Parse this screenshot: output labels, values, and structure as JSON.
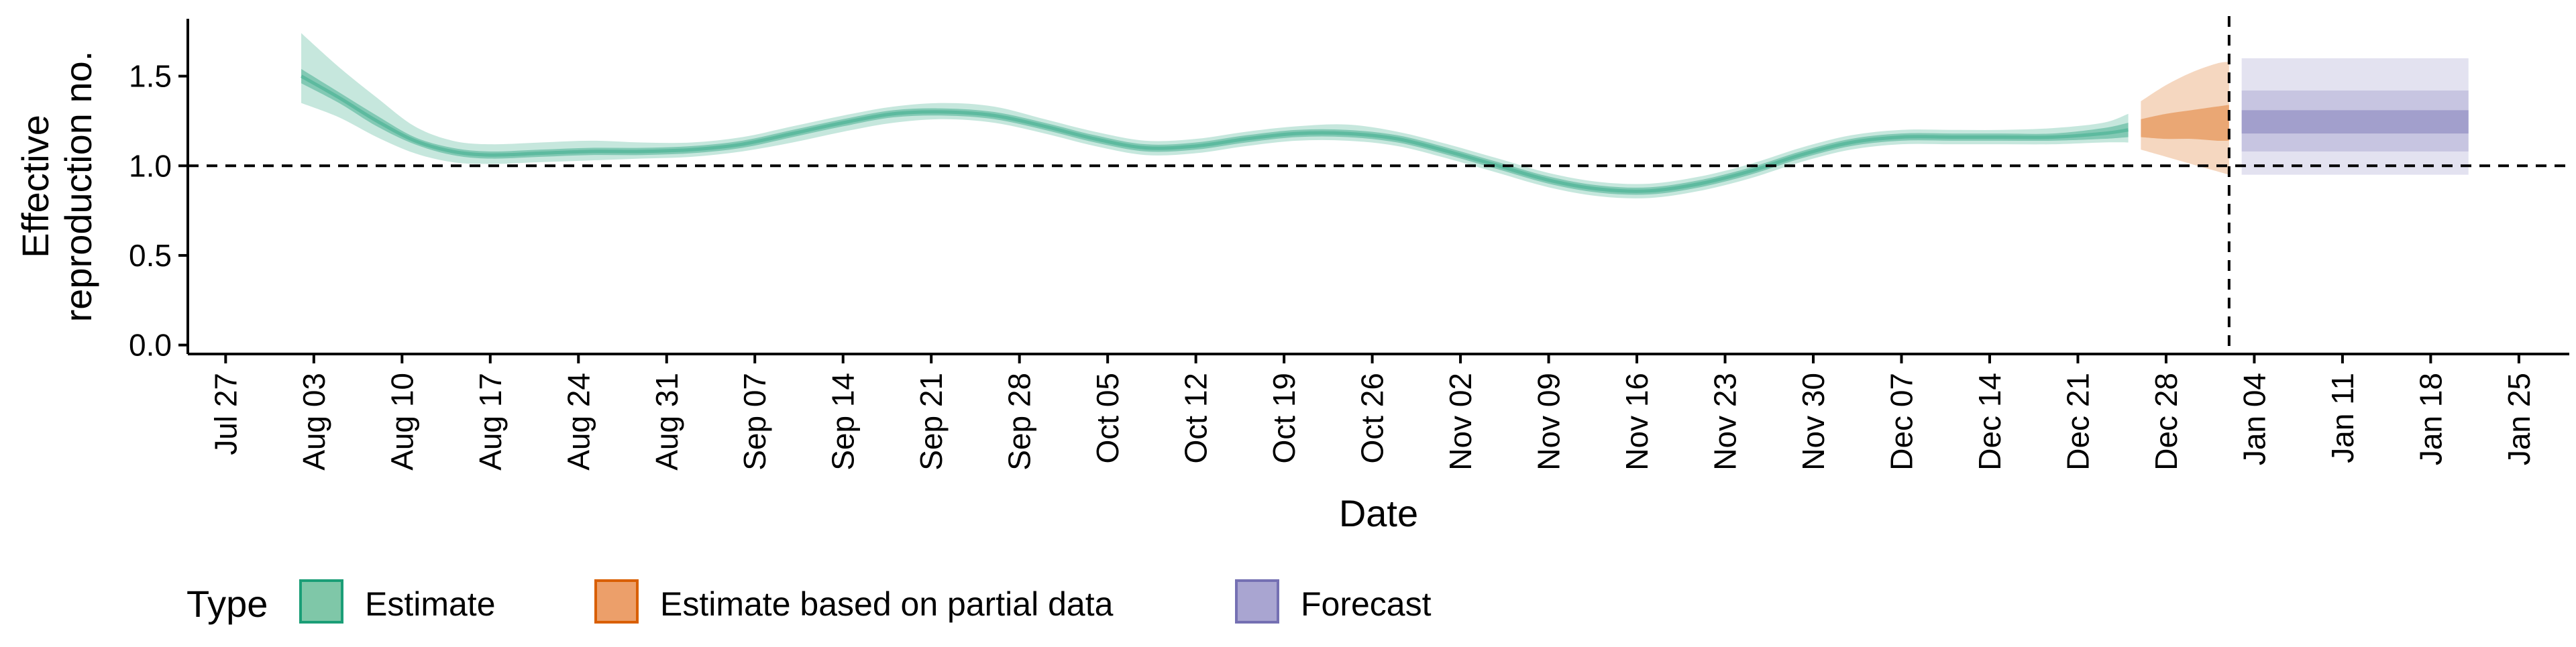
{
  "chart_data": {
    "type": "line",
    "xlabel": "Date",
    "ylabel_lines": [
      "Effective",
      "reproduction no."
    ],
    "ylim": [
      -0.05,
      1.82
    ],
    "y_ticks": [
      {
        "value": 0.0,
        "label": "0.0"
      },
      {
        "value": 0.5,
        "label": "0.5"
      },
      {
        "value": 1.0,
        "label": "1.0"
      },
      {
        "value": 1.5,
        "label": "1.5"
      }
    ],
    "x_ticks": [
      {
        "date": "2020-07-27",
        "label": "Jul 27"
      },
      {
        "date": "2020-08-03",
        "label": "Aug 03"
      },
      {
        "date": "2020-08-10",
        "label": "Aug 10"
      },
      {
        "date": "2020-08-17",
        "label": "Aug 17"
      },
      {
        "date": "2020-08-24",
        "label": "Aug 24"
      },
      {
        "date": "2020-08-31",
        "label": "Aug 31"
      },
      {
        "date": "2020-09-07",
        "label": "Sep 07"
      },
      {
        "date": "2020-09-14",
        "label": "Sep 14"
      },
      {
        "date": "2020-09-21",
        "label": "Sep 21"
      },
      {
        "date": "2020-09-28",
        "label": "Sep 28"
      },
      {
        "date": "2020-10-05",
        "label": "Oct 05"
      },
      {
        "date": "2020-10-12",
        "label": "Oct 12"
      },
      {
        "date": "2020-10-19",
        "label": "Oct 19"
      },
      {
        "date": "2020-10-26",
        "label": "Oct 26"
      },
      {
        "date": "2020-11-02",
        "label": "Nov 02"
      },
      {
        "date": "2020-11-09",
        "label": "Nov 09"
      },
      {
        "date": "2020-11-16",
        "label": "Nov 16"
      },
      {
        "date": "2020-11-23",
        "label": "Nov 23"
      },
      {
        "date": "2020-11-30",
        "label": "Nov 30"
      },
      {
        "date": "2020-12-07",
        "label": "Dec 07"
      },
      {
        "date": "2020-12-14",
        "label": "Dec 14"
      },
      {
        "date": "2020-12-21",
        "label": "Dec 21"
      },
      {
        "date": "2020-12-28",
        "label": "Dec 28"
      },
      {
        "date": "2021-01-04",
        "label": "Jan 04"
      },
      {
        "date": "2021-01-11",
        "label": "Jan 11"
      },
      {
        "date": "2021-01-18",
        "label": "Jan 18"
      },
      {
        "date": "2021-01-25",
        "label": "Jan 25"
      }
    ],
    "xlim": [
      "2020-07-24",
      "2021-01-29"
    ],
    "reference_lines": {
      "horizontal_y": 1.0,
      "vertical_date": "2021-01-02"
    },
    "legend": {
      "title": "Type",
      "position": "bottom-left",
      "entries": [
        {
          "label": "Estimate",
          "fill": "#7fc7a8",
          "border": "#1b9e77"
        },
        {
          "label": "Estimate based on partial data",
          "fill": "#ec9f6a",
          "border": "#d95f02"
        },
        {
          "label": "Forecast",
          "fill": "#a9a5d1",
          "border": "#7570b3"
        }
      ]
    },
    "colors": {
      "estimate": "#1b9e77",
      "partial": "#d95f02",
      "forecast": "#7570b3"
    },
    "series": [
      {
        "type": "Estimate",
        "dates": [
          "2020-08-02",
          "2020-08-05",
          "2020-08-08",
          "2020-08-11",
          "2020-08-14",
          "2020-08-17",
          "2020-08-21",
          "2020-08-25",
          "2020-08-29",
          "2020-09-02",
          "2020-09-06",
          "2020-09-10",
          "2020-09-14",
          "2020-09-18",
          "2020-09-22",
          "2020-09-26",
          "2020-09-30",
          "2020-10-04",
          "2020-10-08",
          "2020-10-12",
          "2020-10-16",
          "2020-10-20",
          "2020-10-24",
          "2020-10-28",
          "2020-11-01",
          "2020-11-05",
          "2020-11-09",
          "2020-11-13",
          "2020-11-17",
          "2020-11-21",
          "2020-11-25",
          "2020-11-29",
          "2020-12-03",
          "2020-12-07",
          "2020-12-11",
          "2020-12-15",
          "2020-12-19",
          "2020-12-23",
          "2020-12-25"
        ],
        "median": [
          1.5,
          1.38,
          1.25,
          1.14,
          1.08,
          1.06,
          1.07,
          1.08,
          1.08,
          1.09,
          1.12,
          1.18,
          1.24,
          1.29,
          1.3,
          1.28,
          1.22,
          1.15,
          1.1,
          1.11,
          1.15,
          1.18,
          1.18,
          1.15,
          1.08,
          1.0,
          0.92,
          0.87,
          0.86,
          0.9,
          0.97,
          1.06,
          1.13,
          1.16,
          1.16,
          1.16,
          1.16,
          1.18,
          1.2
        ],
        "lower_50": [
          1.46,
          1.35,
          1.22,
          1.12,
          1.06,
          1.04,
          1.05,
          1.06,
          1.06,
          1.07,
          1.1,
          1.16,
          1.22,
          1.27,
          1.28,
          1.26,
          1.2,
          1.13,
          1.08,
          1.09,
          1.13,
          1.16,
          1.16,
          1.13,
          1.06,
          0.98,
          0.9,
          0.85,
          0.84,
          0.88,
          0.95,
          1.04,
          1.11,
          1.14,
          1.14,
          1.14,
          1.14,
          1.15,
          1.16
        ],
        "upper_50": [
          1.54,
          1.41,
          1.28,
          1.16,
          1.1,
          1.08,
          1.09,
          1.1,
          1.1,
          1.11,
          1.14,
          1.2,
          1.26,
          1.31,
          1.32,
          1.3,
          1.24,
          1.17,
          1.12,
          1.13,
          1.17,
          1.2,
          1.2,
          1.17,
          1.1,
          1.02,
          0.94,
          0.89,
          0.88,
          0.92,
          0.99,
          1.08,
          1.15,
          1.18,
          1.18,
          1.18,
          1.18,
          1.21,
          1.24
        ],
        "lower_90": [
          1.35,
          1.27,
          1.16,
          1.07,
          1.02,
          1.01,
          1.02,
          1.03,
          1.04,
          1.05,
          1.08,
          1.13,
          1.19,
          1.24,
          1.26,
          1.24,
          1.18,
          1.11,
          1.06,
          1.07,
          1.11,
          1.14,
          1.14,
          1.11,
          1.04,
          0.96,
          0.88,
          0.83,
          0.82,
          0.86,
          0.93,
          1.02,
          1.09,
          1.12,
          1.12,
          1.12,
          1.12,
          1.13,
          1.13
        ],
        "upper_90": [
          1.74,
          1.55,
          1.38,
          1.22,
          1.14,
          1.12,
          1.13,
          1.14,
          1.13,
          1.13,
          1.16,
          1.22,
          1.28,
          1.33,
          1.35,
          1.33,
          1.26,
          1.19,
          1.14,
          1.15,
          1.19,
          1.22,
          1.23,
          1.19,
          1.12,
          1.04,
          0.96,
          0.91,
          0.9,
          0.94,
          1.01,
          1.1,
          1.17,
          1.2,
          1.2,
          1.2,
          1.21,
          1.24,
          1.29
        ]
      },
      {
        "type": "Estimate based on partial data",
        "dates": [
          "2020-12-26",
          "2020-12-28",
          "2020-12-30",
          "2021-01-01",
          "2021-01-02"
        ],
        "median": [
          1.2,
          1.21,
          1.22,
          1.23,
          1.23
        ],
        "lower_50": [
          1.16,
          1.15,
          1.15,
          1.14,
          1.14
        ],
        "upper_50": [
          1.26,
          1.29,
          1.31,
          1.33,
          1.34
        ],
        "lower_90": [
          1.09,
          1.05,
          1.01,
          0.97,
          0.95
        ],
        "upper_90": [
          1.36,
          1.45,
          1.52,
          1.57,
          1.58
        ]
      },
      {
        "type": "Forecast",
        "dates": [
          "2021-01-03",
          "2021-01-21"
        ],
        "median": [
          1.25,
          1.25
        ],
        "lower_50": [
          1.18,
          1.18
        ],
        "upper_50": [
          1.31,
          1.31
        ],
        "lower_90": [
          1.08,
          1.08
        ],
        "upper_90": [
          1.42,
          1.42
        ],
        "lower_95": [
          0.95,
          0.95
        ],
        "upper_95": [
          1.6,
          1.6
        ]
      }
    ]
  }
}
